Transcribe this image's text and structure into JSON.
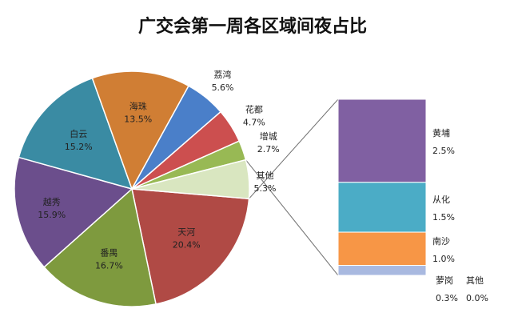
{
  "chart_data": {
    "type": "bar-of-pie",
    "title": "广交会第一周各区域间夜占比",
    "pie": [
      {
        "name": "天河",
        "value": 20.4,
        "label": "20.4%",
        "color": "#b04a45"
      },
      {
        "name": "番禺",
        "value": 16.7,
        "label": "16.7%",
        "color": "#7e9a3e"
      },
      {
        "name": "越秀",
        "value": 15.9,
        "label": "15.9%",
        "color": "#6b4e8c"
      },
      {
        "name": "白云",
        "value": 15.2,
        "label": "15.2%",
        "color": "#3a8ba3"
      },
      {
        "name": "海珠",
        "value": 13.5,
        "label": "13.5%",
        "color": "#d07e34"
      },
      {
        "name": "荔湾",
        "value": 5.6,
        "label": "5.6%",
        "color": "#4a7fc9"
      },
      {
        "name": "花都",
        "value": 4.7,
        "label": "4.7%",
        "color": "#cc4f4f"
      },
      {
        "name": "增城",
        "value": 2.7,
        "label": "2.7%",
        "color": "#98b954"
      },
      {
        "name": "其他",
        "value": 5.3,
        "label": "5.3%",
        "color": "#d9e6c0"
      }
    ],
    "bar": [
      {
        "name": "黄埔",
        "value": 2.5,
        "label": "2.5%",
        "color": "#8060a2"
      },
      {
        "name": "从化",
        "value": 1.5,
        "label": "1.5%",
        "color": "#4bacc6"
      },
      {
        "name": "南沙",
        "value": 1.0,
        "label": "1.0%",
        "color": "#f79646"
      },
      {
        "name": "萝岗",
        "value": 0.3,
        "label": "0.3%",
        "color": "#a9b9e0"
      },
      {
        "name": "其他",
        "value": 0.0,
        "label": "0.0%",
        "color": "#8064a2"
      }
    ]
  }
}
